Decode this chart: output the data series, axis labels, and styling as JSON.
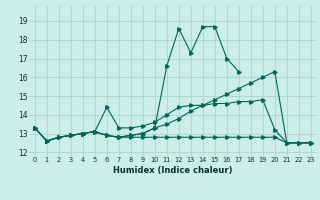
{
  "xlabel": "Humidex (Indice chaleur)",
  "bg_color": "#cceee8",
  "grid_color": "#aad4cc",
  "line_color": "#006655",
  "xlim": [
    -0.5,
    23.5
  ],
  "ylim": [
    11.8,
    19.8
  ],
  "yticks": [
    12,
    13,
    14,
    15,
    16,
    17,
    18,
    19
  ],
  "xticks": [
    0,
    1,
    2,
    3,
    4,
    5,
    6,
    7,
    8,
    9,
    10,
    11,
    12,
    13,
    14,
    15,
    16,
    17,
    18,
    19,
    20,
    21,
    22,
    23
  ],
  "series": [
    {
      "x": [
        0,
        1,
        2,
        3,
        4,
        5,
        6,
        7,
        8,
        9,
        10,
        11,
        12,
        13,
        14,
        15,
        16,
        17,
        18,
        19,
        20,
        21,
        22,
        23
      ],
      "y": [
        13.3,
        12.6,
        12.8,
        12.9,
        13.0,
        13.1,
        12.9,
        12.8,
        12.9,
        13.0,
        13.3,
        16.6,
        18.6,
        17.3,
        18.7,
        18.7,
        17.0,
        16.3,
        null,
        null,
        null,
        null,
        null,
        null
      ]
    },
    {
      "x": [
        0,
        1,
        2,
        3,
        4,
        5,
        6,
        7,
        8,
        9,
        10,
        11,
        12,
        13,
        14,
        15,
        16,
        17,
        18,
        19,
        20,
        21,
        22,
        23
      ],
      "y": [
        13.3,
        12.6,
        12.8,
        12.9,
        13.0,
        13.1,
        12.9,
        12.8,
        12.8,
        12.8,
        12.8,
        12.8,
        12.8,
        12.8,
        12.8,
        12.8,
        12.8,
        12.8,
        12.8,
        12.8,
        12.8,
        12.5,
        12.5,
        12.5
      ]
    },
    {
      "x": [
        0,
        1,
        2,
        3,
        4,
        5,
        6,
        7,
        8,
        9,
        10,
        11,
        12,
        13,
        14,
        15,
        16,
        17,
        18,
        19,
        20,
        21,
        22,
        23
      ],
      "y": [
        13.3,
        12.6,
        12.8,
        12.9,
        13.0,
        13.1,
        12.9,
        12.8,
        12.9,
        13.0,
        13.3,
        13.5,
        13.8,
        14.2,
        14.5,
        14.8,
        15.1,
        15.4,
        15.7,
        16.0,
        16.3,
        12.5,
        12.5,
        12.5
      ]
    },
    {
      "x": [
        0,
        1,
        2,
        3,
        4,
        5,
        6,
        7,
        8,
        9,
        10,
        11,
        12,
        13,
        14,
        15,
        16,
        17,
        18,
        19,
        20,
        21,
        22,
        23
      ],
      "y": [
        13.3,
        12.6,
        12.8,
        12.9,
        13.0,
        13.1,
        14.4,
        13.3,
        13.3,
        13.4,
        13.6,
        14.0,
        14.4,
        14.5,
        14.5,
        14.6,
        14.6,
        14.7,
        14.7,
        14.8,
        13.2,
        12.5,
        12.5,
        12.5
      ]
    }
  ]
}
